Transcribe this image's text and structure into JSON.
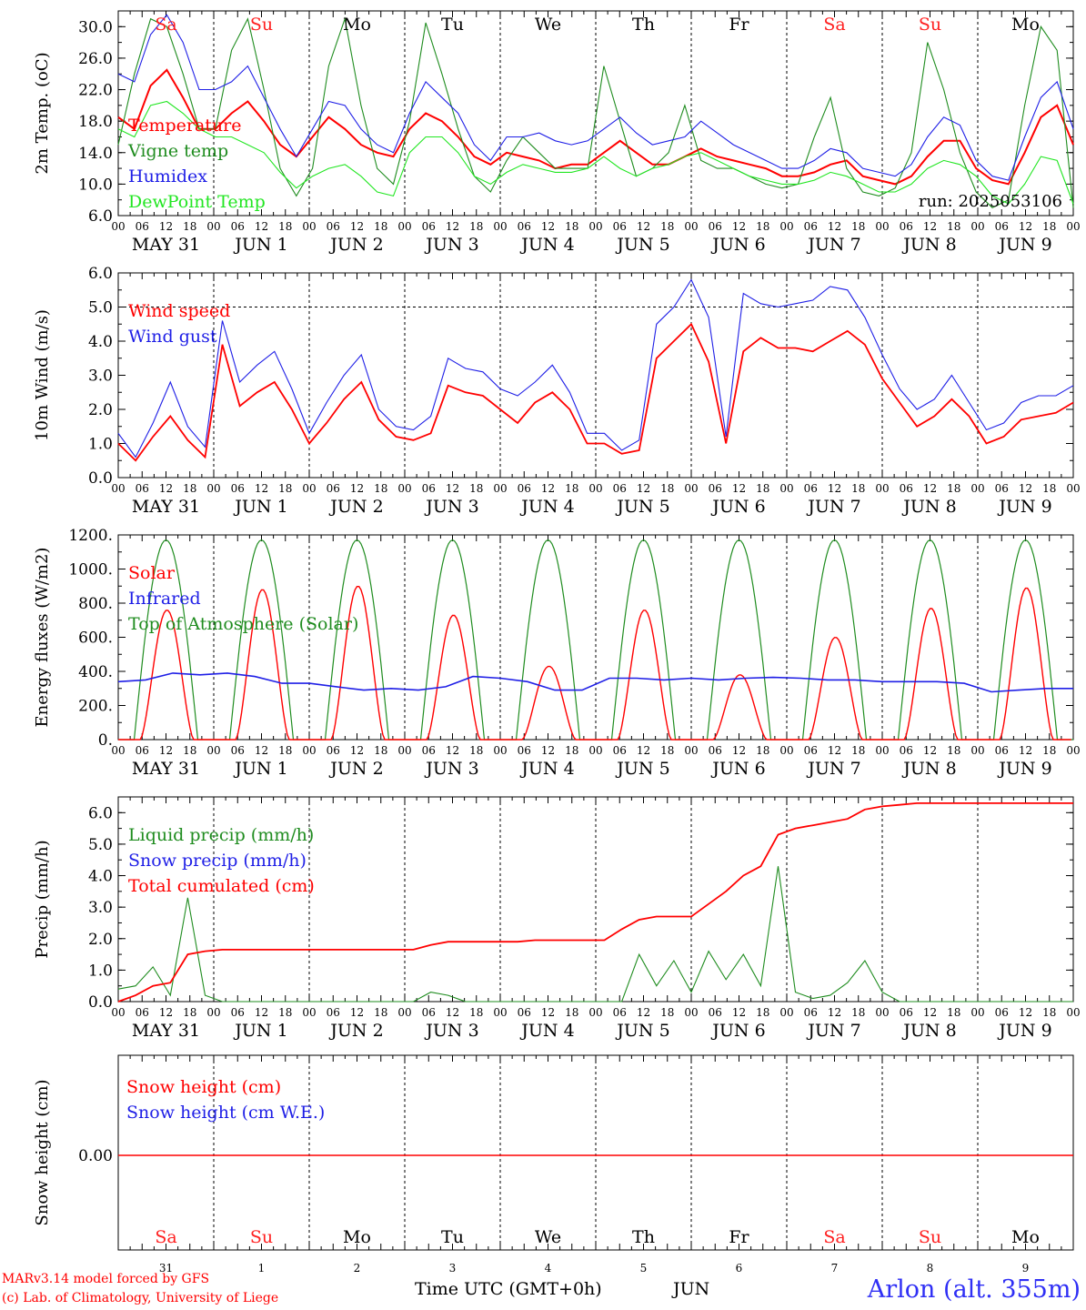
{
  "days": [
    {
      "weekday": "Sa",
      "date_label": "MAY 31",
      "day_num": "31",
      "weekend": true
    },
    {
      "weekday": "Su",
      "date_label": "JUN  1",
      "day_num": "1",
      "weekend": true
    },
    {
      "weekday": "Mo",
      "date_label": "JUN  2",
      "day_num": "2",
      "weekend": false
    },
    {
      "weekday": "Tu",
      "date_label": "JUN  3",
      "day_num": "3",
      "weekend": false
    },
    {
      "weekday": "We",
      "date_label": "JUN  4",
      "day_num": "4",
      "weekend": false
    },
    {
      "weekday": "Th",
      "date_label": "JUN  5",
      "day_num": "5",
      "weekend": false
    },
    {
      "weekday": "Fr",
      "date_label": "JUN  6",
      "day_num": "6",
      "weekend": false
    },
    {
      "weekday": "Sa",
      "date_label": "JUN  7",
      "day_num": "7",
      "weekend": true
    },
    {
      "weekday": "Su",
      "date_label": "JUN  8",
      "day_num": "8",
      "weekend": true
    },
    {
      "weekday": "Mo",
      "date_label": "JUN  9",
      "day_num": "9",
      "weekend": false
    }
  ],
  "hour_ticks": [
    "00",
    "06",
    "12",
    "18"
  ],
  "colors": {
    "weekend": "#ff2020",
    "weekday": "#000000",
    "red": "#ff0000",
    "green": "#1f8c1f",
    "blue": "#1f1fe6",
    "lightgreen": "#22e622",
    "station": "#2f2ff5"
  },
  "footer": {
    "model": "MARv3.14 model forced by GFS",
    "credit": "(c) Lab. of Climatology, University of Liege",
    "xaxis_title": "Time UTC (GMT+0h)",
    "month": "JUN",
    "station": "Arlon (alt. 355m)"
  },
  "chart_data": [
    {
      "type": "line",
      "ylabel": "2m Temp. (oC)",
      "ylim": [
        6.0,
        32.0
      ],
      "yticks": [
        "6.0",
        "10.0",
        "14.0",
        "18.0",
        "22.0",
        "26.0",
        "30.0"
      ],
      "ytick_values": [
        6,
        10,
        14,
        18,
        22,
        26,
        30
      ],
      "annotation": "run: 2025053106",
      "x_hours_step": 6,
      "series": [
        {
          "name": "Temperature",
          "color": "red",
          "values": [
            18.5,
            17,
            22.5,
            24.5,
            21,
            17,
            17,
            19,
            20.5,
            18,
            15,
            13.5,
            16,
            18.5,
            17,
            15,
            14,
            13.5,
            17,
            19,
            18,
            16,
            13.5,
            12.5,
            14,
            13.5,
            13,
            12,
            12.5,
            12.5,
            14,
            15.5,
            14,
            12.5,
            12.5,
            13.5,
            14.5,
            13.5,
            13,
            12.5,
            12,
            11,
            11,
            11.5,
            12.5,
            13,
            11,
            10.5,
            10,
            11,
            13.5,
            15.5,
            15.5,
            12,
            10.5,
            10,
            14,
            18.5,
            20,
            15
          ]
        },
        {
          "name": "Vigne temp",
          "color": "green",
          "values": [
            15,
            24,
            31,
            30,
            24,
            17,
            17,
            27,
            31,
            22,
            12,
            8.5,
            12,
            25,
            31,
            20,
            12,
            10,
            18,
            30.5,
            24,
            17,
            11,
            9,
            13,
            16,
            14,
            12,
            12,
            12,
            25,
            18,
            11,
            12,
            14,
            20,
            13,
            12,
            12,
            11,
            10,
            9.5,
            10,
            16,
            21,
            12,
            9,
            8.5,
            9.5,
            14,
            28,
            22,
            14,
            9,
            7,
            8,
            20,
            30,
            27,
            7
          ]
        },
        {
          "name": "Humidex",
          "color": "blue",
          "values": [
            24,
            23,
            29,
            31.5,
            28,
            22,
            22,
            23,
            25,
            21,
            17,
            13.5,
            17,
            20.5,
            20,
            17,
            15,
            14,
            19,
            23,
            21,
            19,
            15,
            13,
            16,
            16,
            16.5,
            15.5,
            15,
            15.5,
            17,
            18.5,
            16.5,
            15,
            15.5,
            16,
            18,
            16.5,
            15,
            14,
            13,
            12,
            12,
            13,
            14.5,
            14,
            12,
            11.5,
            11,
            12.5,
            16,
            18.5,
            17.5,
            13,
            11,
            10.5,
            16,
            21,
            23,
            17
          ]
        },
        {
          "name": "DewPoint Temp",
          "color": "lightgreen",
          "values": [
            17,
            16,
            20,
            20.5,
            19,
            17,
            16,
            16,
            15,
            14,
            11.5,
            9.5,
            11,
            12,
            12.5,
            11,
            9,
            8.5,
            14,
            16,
            16,
            14,
            11,
            10,
            11.5,
            12.5,
            12,
            11.5,
            11.5,
            12,
            13.5,
            12,
            11,
            12,
            12.5,
            13.5,
            14,
            13,
            12,
            11,
            10.5,
            10,
            10,
            10.5,
            11.5,
            11,
            10,
            9,
            9,
            10,
            12,
            13,
            12.5,
            11,
            8.5,
            7.5,
            10,
            13.5,
            13,
            7.5
          ]
        }
      ]
    },
    {
      "type": "line",
      "ylabel": "10m Wind (m/s)",
      "ylim": [
        0.0,
        6.0
      ],
      "yticks": [
        "0.0",
        "1.0",
        "2.0",
        "3.0",
        "4.0",
        "5.0",
        "6.0"
      ],
      "ytick_values": [
        0,
        1,
        2,
        3,
        4,
        5,
        6
      ],
      "reference_line": 5.0,
      "x_hours_step": 6,
      "series": [
        {
          "name": "Wind speed",
          "color": "red",
          "values": [
            1.0,
            0.5,
            1.2,
            1.8,
            1.1,
            0.6,
            3.9,
            2.1,
            2.5,
            2.8,
            2.0,
            1.0,
            1.6,
            2.3,
            2.8,
            1.7,
            1.2,
            1.1,
            1.3,
            2.7,
            2.5,
            2.4,
            2.0,
            1.6,
            2.2,
            2.5,
            2.0,
            1.0,
            1.0,
            0.7,
            0.8,
            3.5,
            4.0,
            4.5,
            3.4,
            1.0,
            3.7,
            4.1,
            3.8,
            3.8,
            3.7,
            4.0,
            4.3,
            3.9,
            2.9,
            2.2,
            1.5,
            1.8,
            2.3,
            1.8,
            1.0,
            1.2,
            1.7,
            1.8,
            1.9,
            2.2
          ]
        },
        {
          "name": "Wind gust",
          "color": "blue",
          "values": [
            1.3,
            0.6,
            1.6,
            2.8,
            1.5,
            0.9,
            4.6,
            2.8,
            3.3,
            3.7,
            2.6,
            1.3,
            2.2,
            3.0,
            3.6,
            2.0,
            1.5,
            1.4,
            1.8,
            3.5,
            3.2,
            3.1,
            2.6,
            2.4,
            2.8,
            3.3,
            2.5,
            1.3,
            1.3,
            0.8,
            1.1,
            4.5,
            5.0,
            5.8,
            4.7,
            1.2,
            5.4,
            5.1,
            5.0,
            5.1,
            5.2,
            5.6,
            5.5,
            4.7,
            3.6,
            2.6,
            2.0,
            2.3,
            3.0,
            2.2,
            1.4,
            1.6,
            2.2,
            2.4,
            2.4,
            2.7
          ]
        }
      ]
    },
    {
      "type": "line",
      "ylabel": "Energy fluxes (W/m2)",
      "ylim": [
        0,
        1200
      ],
      "yticks": [
        "0.",
        "200.",
        "400.",
        "600.",
        "800.",
        "1000.",
        "1200."
      ],
      "ytick_values": [
        0,
        200,
        400,
        600,
        800,
        1000,
        1200
      ],
      "toa_peak": 1170,
      "series": [
        {
          "name": "Solar",
          "color": "red",
          "day_peaks": [
            760,
            880,
            900,
            730,
            430,
            760,
            380,
            600,
            770,
            890
          ]
        },
        {
          "name": "Infrared",
          "color": "blue",
          "values": [
            340,
            350,
            390,
            380,
            390,
            370,
            330,
            330,
            310,
            290,
            300,
            290,
            310,
            370,
            360,
            340,
            290,
            290,
            360,
            360,
            350,
            360,
            350,
            360,
            365,
            360,
            350,
            350,
            340,
            340,
            340,
            330,
            280,
            290,
            300,
            300
          ]
        },
        {
          "name": "Top of Atmosphere (Solar)",
          "color": "green"
        }
      ]
    },
    {
      "type": "line",
      "ylabel": "Precip (mm/h)",
      "ylim": [
        0.0,
        6.5
      ],
      "yticks": [
        "0.0",
        "1.0",
        "2.0",
        "3.0",
        "4.0",
        "5.0",
        "6.0"
      ],
      "ytick_values": [
        0,
        1,
        2,
        3,
        4,
        5,
        6
      ],
      "series": [
        {
          "name": "Liquid precip (mm/h)",
          "color": "green",
          "values": [
            0.4,
            0.5,
            1.1,
            0.2,
            3.3,
            0.2,
            0.0,
            0.0,
            0.0,
            0.0,
            0.0,
            0.0,
            0.0,
            0.0,
            0.0,
            0.0,
            0.0,
            0.0,
            0.3,
            0.2,
            0.0,
            0.0,
            0.0,
            0.0,
            0.0,
            0.0,
            0.0,
            0.0,
            0.0,
            0.0,
            1.5,
            0.5,
            1.3,
            0.3,
            1.6,
            0.7,
            1.5,
            0.5,
            4.3,
            0.3,
            0.1,
            0.2,
            0.6,
            1.3,
            0.3,
            0.0,
            0.0,
            0.0,
            0.0,
            0.0,
            0.0,
            0.0,
            0.0,
            0.0,
            0.0,
            0.0
          ]
        },
        {
          "name": "Snow precip (mm/h)",
          "color": "blue",
          "values": []
        },
        {
          "name": "Total cumulated (cm)",
          "color": "red",
          "values": [
            0.0,
            0.2,
            0.5,
            0.6,
            1.5,
            1.6,
            1.65,
            1.65,
            1.65,
            1.65,
            1.65,
            1.65,
            1.65,
            1.65,
            1.65,
            1.65,
            1.65,
            1.65,
            1.8,
            1.9,
            1.9,
            1.9,
            1.9,
            1.9,
            1.95,
            1.95,
            1.95,
            1.95,
            1.95,
            2.3,
            2.6,
            2.7,
            2.7,
            2.7,
            3.1,
            3.5,
            4.0,
            4.3,
            5.3,
            5.5,
            5.6,
            5.7,
            5.8,
            6.1,
            6.2,
            6.25,
            6.3,
            6.3,
            6.3,
            6.3,
            6.3,
            6.3,
            6.3,
            6.3,
            6.3,
            6.3
          ]
        }
      ]
    },
    {
      "type": "line",
      "ylabel": "Snow height (cm)",
      "yticks": [
        "0.00"
      ],
      "ytick_values": [
        0
      ],
      "series": [
        {
          "name": "Snow height (cm)",
          "color": "red",
          "values": [
            0.0,
            0.0
          ]
        },
        {
          "name": "Snow height (cm W.E.)",
          "color": "blue",
          "values": []
        }
      ]
    }
  ]
}
